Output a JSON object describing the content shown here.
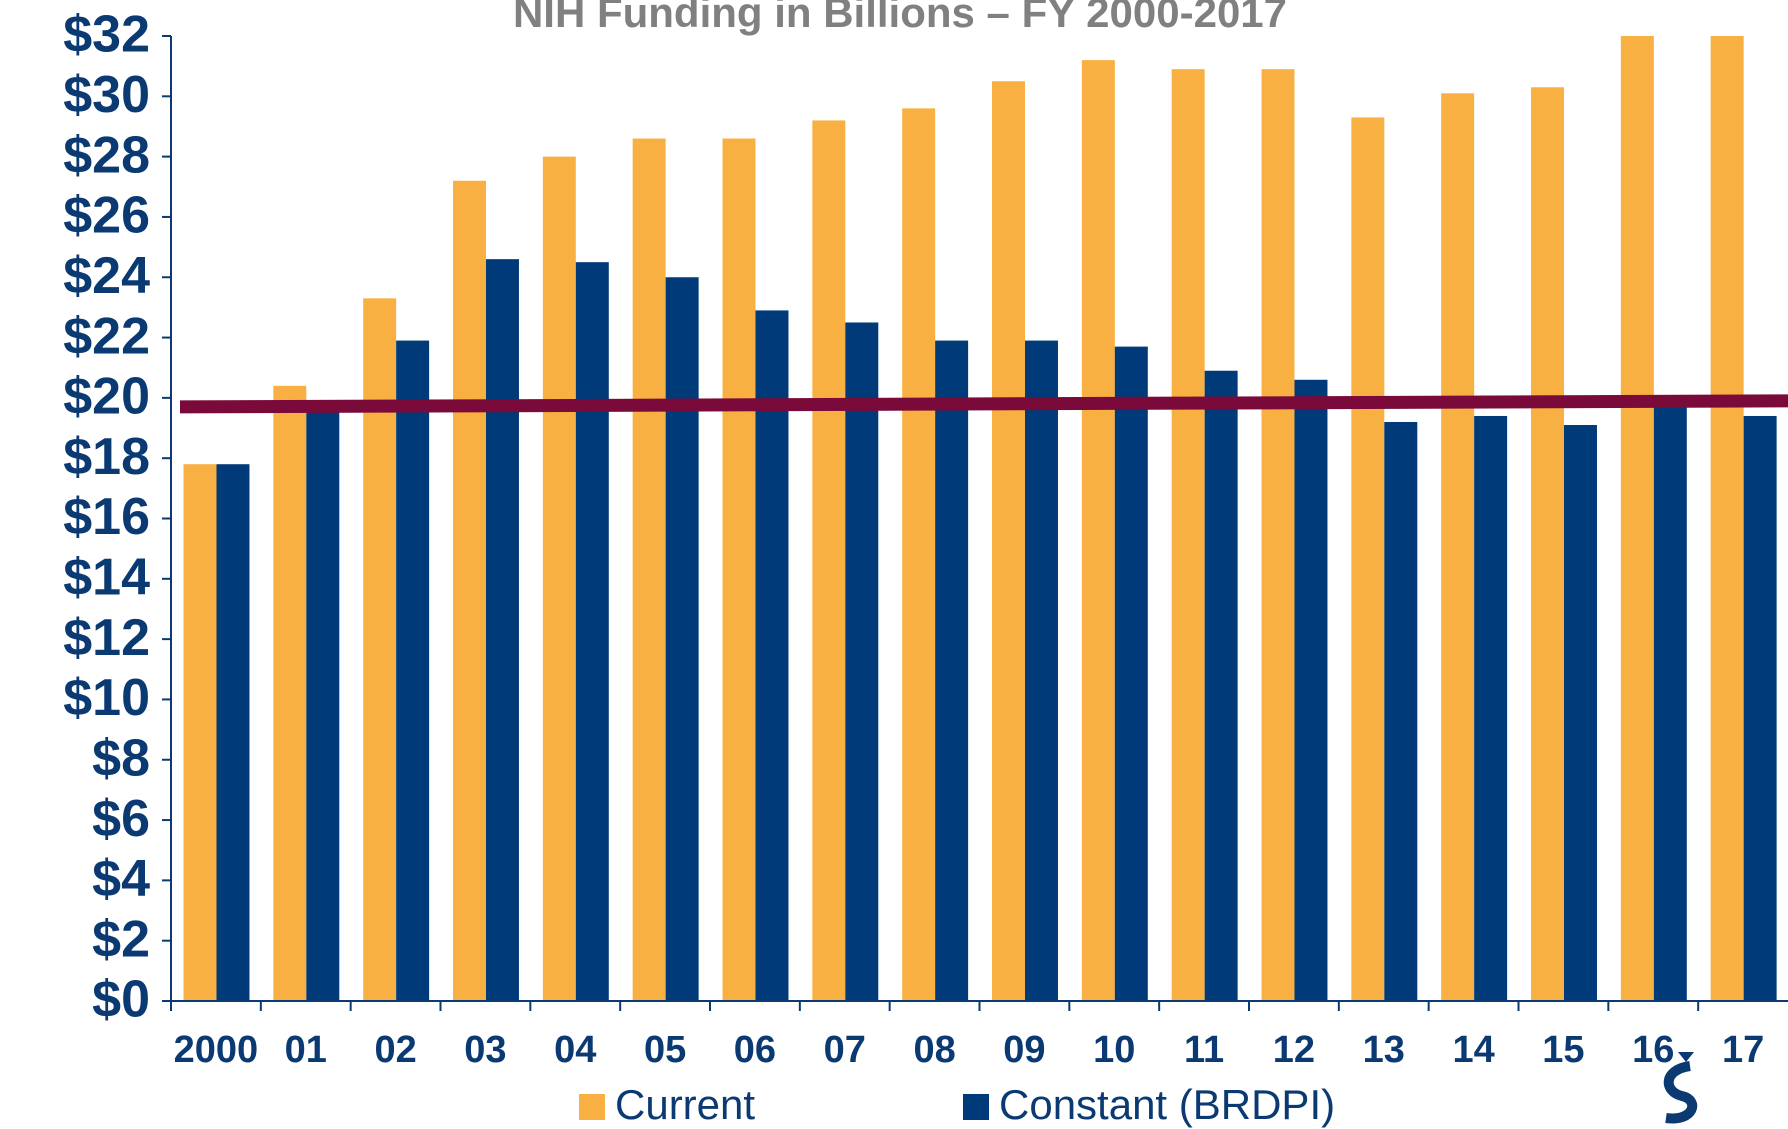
{
  "chart_data": {
    "type": "bar",
    "title": "NIH Funding in Billions – FY 2000-2017",
    "categories": [
      "2000",
      "01",
      "02",
      "03",
      "04",
      "05",
      "06",
      "07",
      "08",
      "09",
      "10",
      "11",
      "12",
      "13",
      "14",
      "15",
      "16",
      "17"
    ],
    "series": [
      {
        "name": "Current",
        "color": "#f9b042",
        "values": [
          17.8,
          20.4,
          23.3,
          27.2,
          28.0,
          28.6,
          28.6,
          29.2,
          29.6,
          30.5,
          31.2,
          30.9,
          30.9,
          29.3,
          30.1,
          30.3,
          32.3,
          32.3
        ]
      },
      {
        "name": "Constant (BRDPI)",
        "color": "#003a78",
        "values": [
          17.8,
          19.7,
          21.9,
          24.6,
          24.5,
          24.0,
          22.9,
          22.5,
          21.9,
          21.9,
          21.7,
          20.9,
          20.6,
          19.2,
          19.4,
          19.1,
          19.8,
          19.4
        ]
      }
    ],
    "reference_line": {
      "start": 19.7,
      "end": 19.9,
      "color": "#7a0a3a"
    },
    "ylim": [
      0,
      32
    ],
    "yticks": [
      {
        "value": 0,
        "label": "$0"
      },
      {
        "value": 2,
        "label": "$2"
      },
      {
        "value": 4,
        "label": "$4"
      },
      {
        "value": 6,
        "label": "$6"
      },
      {
        "value": 8,
        "label": "$8"
      },
      {
        "value": 10,
        "label": "$10"
      },
      {
        "value": 12,
        "label": "$12"
      },
      {
        "value": 14,
        "label": "$14"
      },
      {
        "value": 16,
        "label": "$16"
      },
      {
        "value": 18,
        "label": "$18"
      },
      {
        "value": 20,
        "label": "$20"
      },
      {
        "value": 22,
        "label": "$22"
      },
      {
        "value": 24,
        "label": "$24"
      },
      {
        "value": 26,
        "label": "$26"
      },
      {
        "value": 28,
        "label": "$28"
      },
      {
        "value": 30,
        "label": "$30"
      },
      {
        "value": 32,
        "label": "$32"
      }
    ],
    "grid": false
  }
}
